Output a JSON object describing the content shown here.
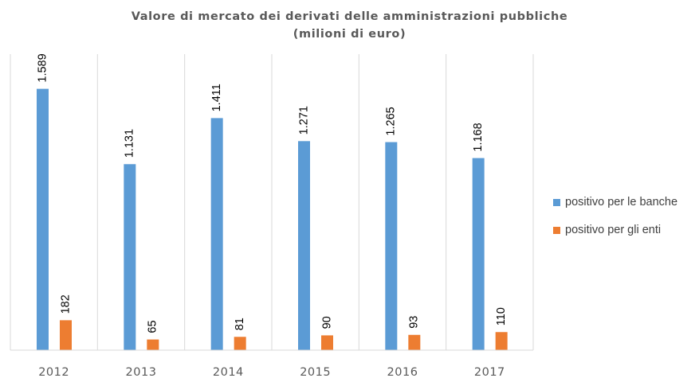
{
  "chart_data": {
    "type": "bar",
    "title": "Valore di mercato dei derivati delle amministrazioni pubbliche",
    "subtitle": "(milioni di euro)",
    "categories": [
      "2012",
      "2013",
      "2014",
      "2015",
      "2016",
      "2017"
    ],
    "series": [
      {
        "name": "positivo per le banche",
        "color": "#5B9BD5",
        "values": [
          1589,
          1131,
          1411,
          1271,
          1265,
          1168
        ],
        "labels": [
          "1.589",
          "1.131",
          "1.411",
          "1.271",
          "1.265",
          "1.168"
        ]
      },
      {
        "name": "positivo per gli enti",
        "color": "#ED7D31",
        "values": [
          182,
          65,
          81,
          90,
          93,
          110
        ],
        "labels": [
          "182",
          "65",
          "81",
          "90",
          "93",
          "110"
        ]
      }
    ],
    "ylim": [
      0,
      1800
    ],
    "grid": "vertical-category-separators",
    "legend_position": "right",
    "data_labels": "rotated-vertical"
  }
}
